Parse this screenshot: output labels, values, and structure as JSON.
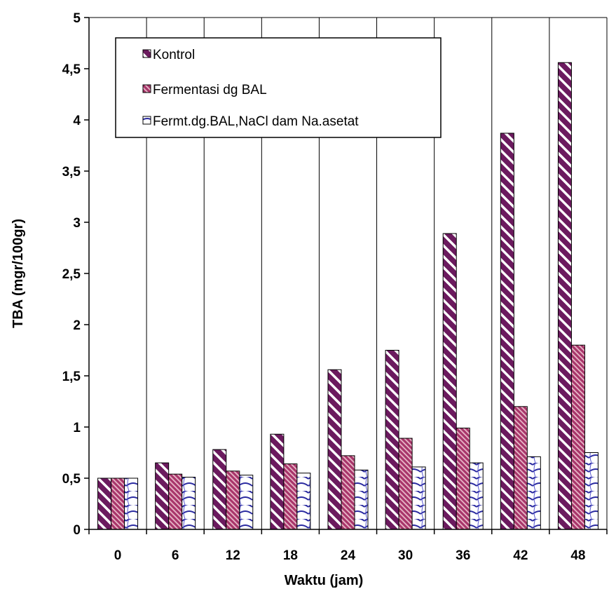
{
  "chart_data": {
    "type": "bar",
    "xlabel": "Waktu (jam)",
    "ylabel": "TBA (mgr/100gr)",
    "categories": [
      "0",
      "6",
      "12",
      "18",
      "24",
      "30",
      "36",
      "42",
      "48"
    ],
    "ylim": [
      0,
      5
    ],
    "yticks": [
      "0",
      "0,5",
      "1",
      "1,5",
      "2",
      "2,5",
      "3",
      "3,5",
      "4",
      "4,5",
      "5"
    ],
    "grid": "vertical gridlines between categories",
    "legend_position": "top-left",
    "series": [
      {
        "name": "Kontrol",
        "values": [
          0.5,
          0.65,
          0.78,
          0.93,
          1.56,
          1.75,
          2.89,
          3.87,
          4.56
        ],
        "color": "#6b1a5e",
        "pattern": "wide diagonal stripes"
      },
      {
        "name": "Fermentasi dg BAL",
        "values": [
          0.5,
          0.54,
          0.57,
          0.64,
          0.72,
          0.89,
          0.99,
          1.2,
          1.8
        ],
        "color": "#a8356a",
        "pattern": "fine diagonal hatch"
      },
      {
        "name": "Fermt.dg.BAL,NaCl dam Na.asetat",
        "values": [
          0.5,
          0.51,
          0.53,
          0.55,
          0.58,
          0.61,
          0.65,
          0.71,
          0.75
        ],
        "color": "#2a2aa0",
        "pattern": "wave / scallop"
      }
    ]
  }
}
